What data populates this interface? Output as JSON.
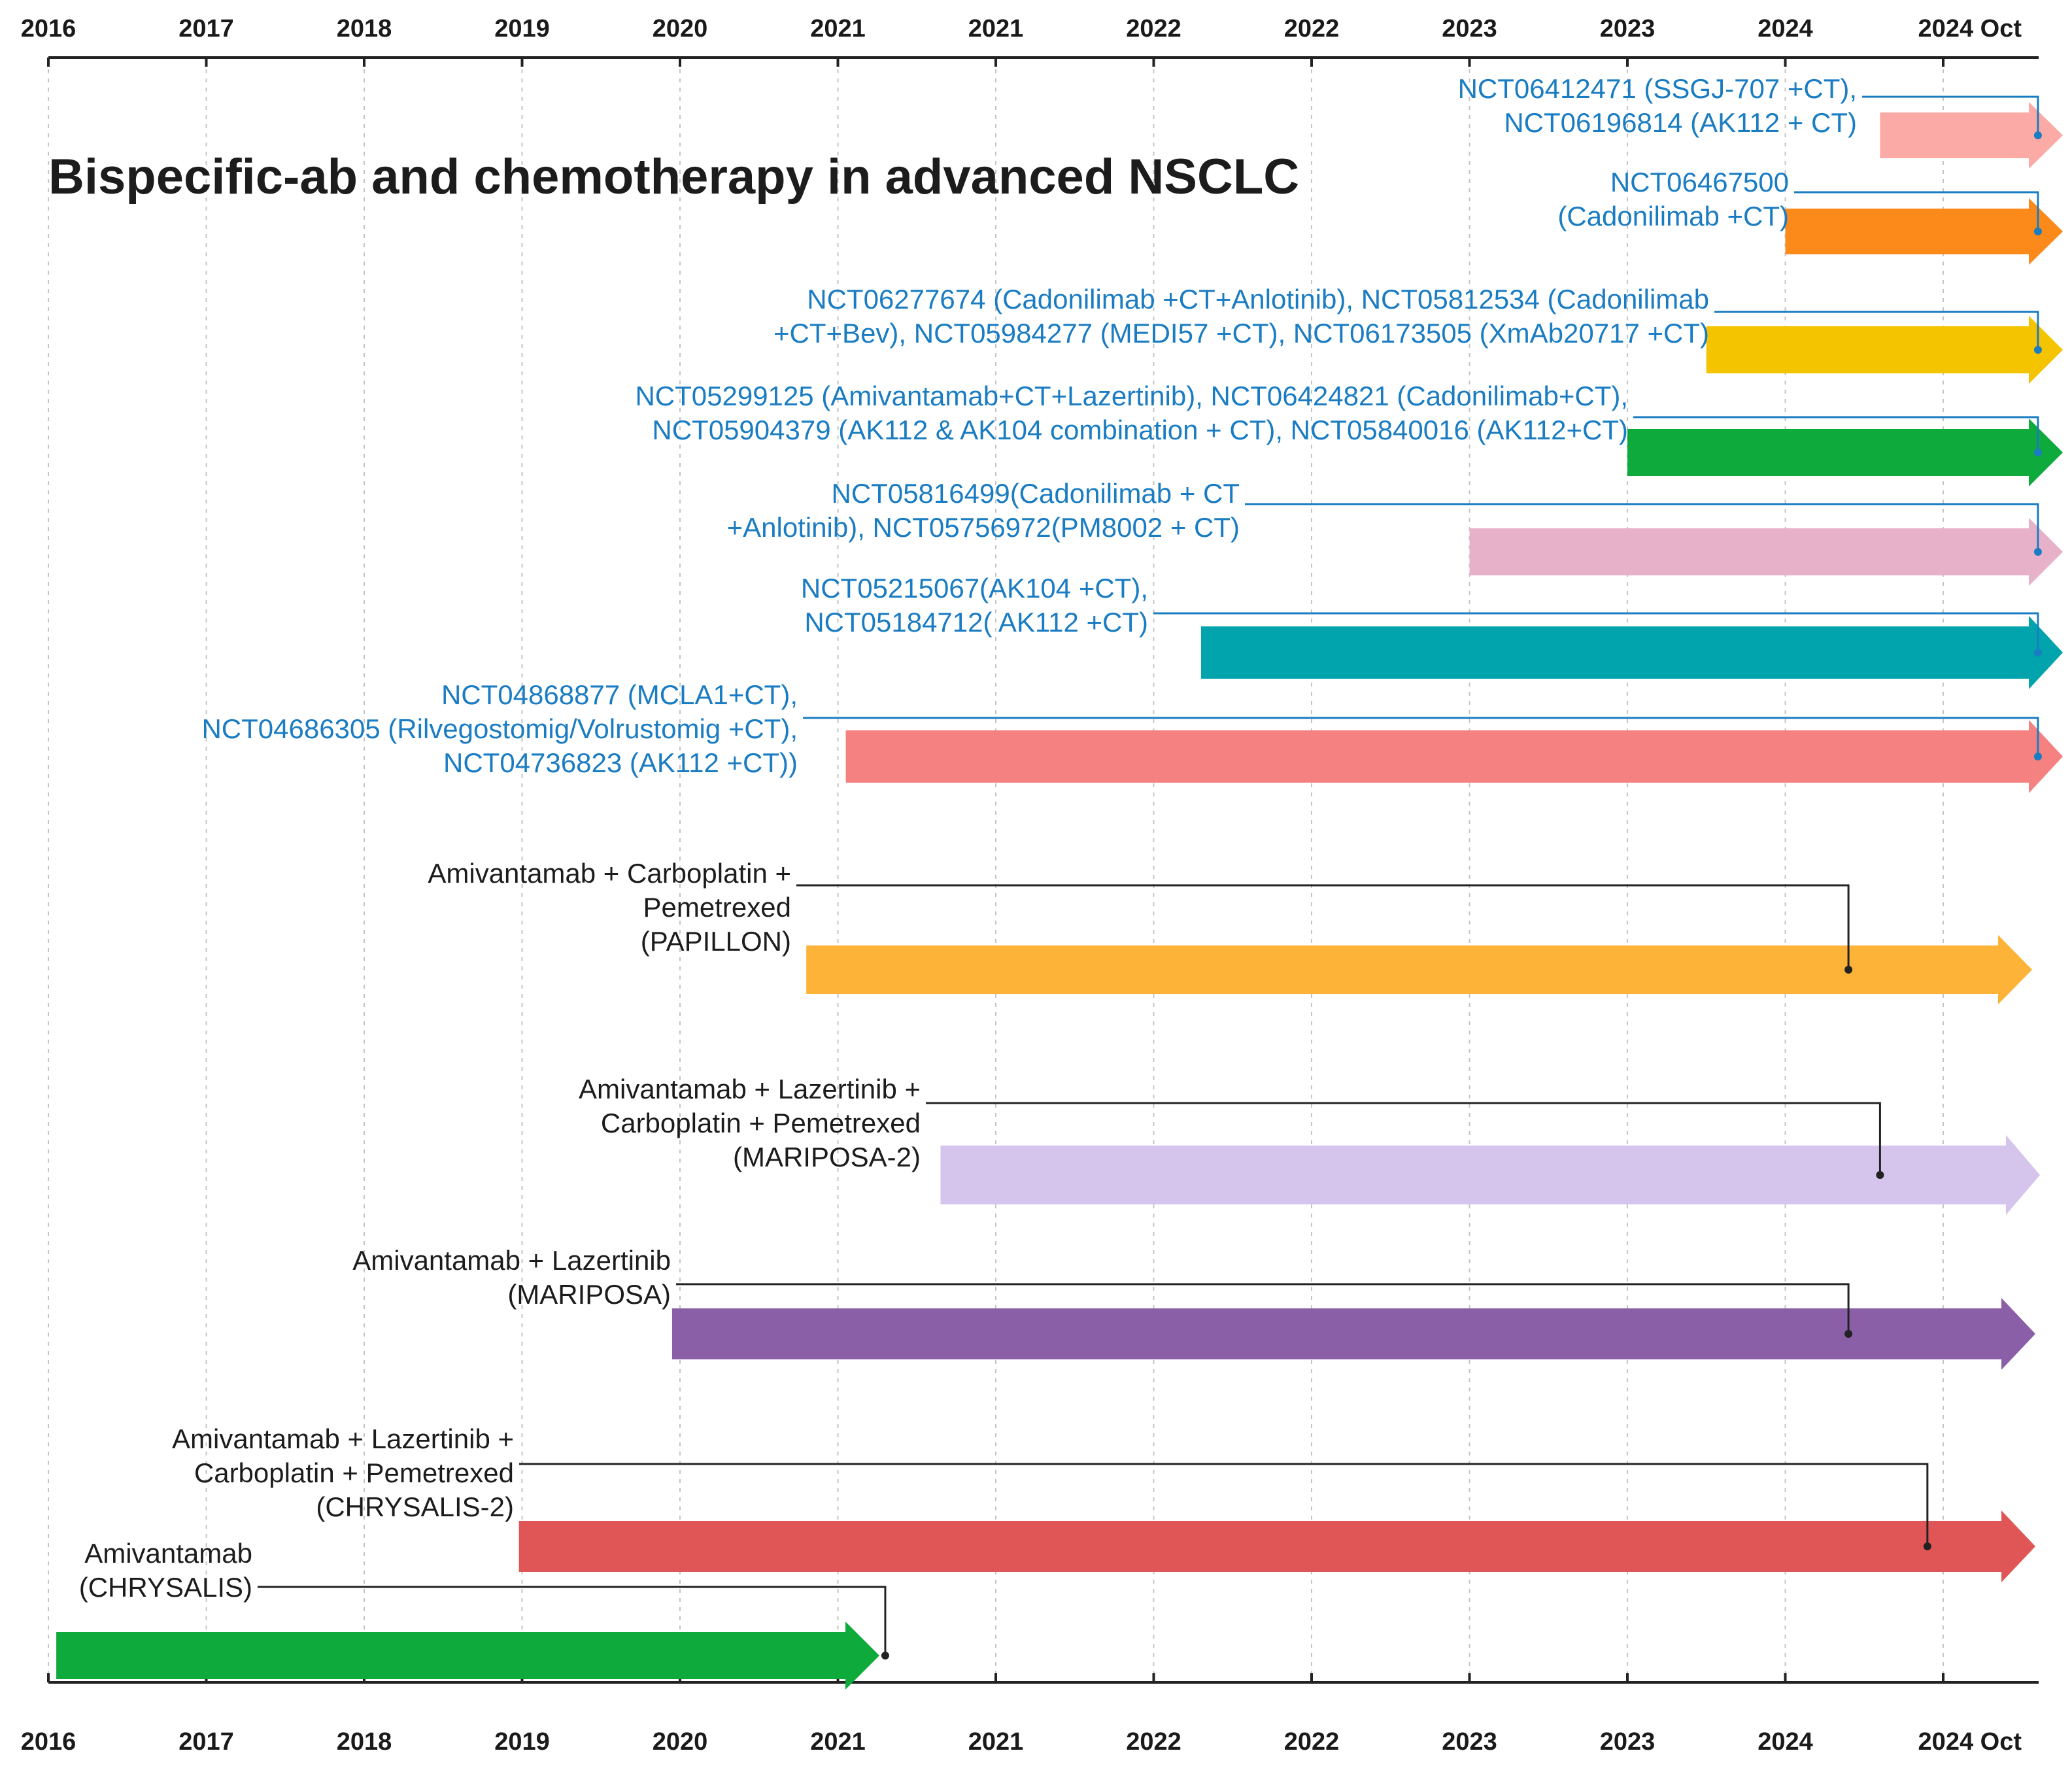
{
  "title": "Bispecific-ab and chemotherapy in advanced NSCLC",
  "axis": {
    "ticks": [
      "2016",
      "2017",
      "2018",
      "2019",
      "2020",
      "2021",
      "2021",
      "2022",
      "2022",
      "2023",
      "2023",
      "2024",
      "2024 Oct"
    ]
  },
  "trials": [
    {
      "id": "t1",
      "start": 11.6,
      "end_marker": 12.6,
      "color": "#fbaaa6",
      "label_color": "blue",
      "lines": [
        "NCT06412471 (SSGJ-707 +CT),",
        "NCT06196814 (AK112 + CT)"
      ]
    },
    {
      "id": "t2",
      "start": 11.0,
      "end_marker": 12.6,
      "color": "#fb8a1a",
      "label_color": "blue",
      "lines": [
        "NCT06467500",
        "(Cadonilimab +CT)"
      ]
    },
    {
      "id": "t3",
      "start": 10.5,
      "end_marker": 12.6,
      "color": "#f5c400",
      "label_color": "blue",
      "lines": [
        "NCT06277674 (Cadonilimab +CT+Anlotinib), NCT05812534 (Cadonilimab",
        "+CT+Bev), NCT05984277 (MEDI57 +CT), NCT06173505 (XmAb20717 +CT)"
      ]
    },
    {
      "id": "t4",
      "start": 10.0,
      "end_marker": 12.6,
      "color": "#0eaa3c",
      "label_color": "blue",
      "lines": [
        "NCT05299125 (Amivantamab+CT+Lazertinib), NCT06424821 (Cadonilimab+CT),",
        "NCT05904379 (AK112 & AK104 combination + CT), NCT05840016 (AK112+CT)"
      ]
    },
    {
      "id": "t5",
      "start": 9.0,
      "end_marker": 12.6,
      "color": "#e8b1ca",
      "label_color": "blue",
      "lines": [
        "NCT05816499(Cadonilimab + CT",
        "+Anlotinib), NCT05756972(PM8002 + CT)"
      ]
    },
    {
      "id": "t6",
      "start": 7.3,
      "end_marker": 12.6,
      "color": "#01a3ac",
      "label_color": "blue",
      "lines": [
        "NCT05215067(AK104 +CT),",
        "NCT05184712( AK112 +CT)"
      ]
    },
    {
      "id": "t7",
      "start": 5.05,
      "end_marker": 12.6,
      "color": "#f68181",
      "label_color": "blue",
      "lines": [
        "NCT04868877 (MCLA1+CT),",
        "NCT04686305 (Rilvegostomig/Volrustomig +CT),",
        "NCT04736823 (AK112 +CT))"
      ]
    },
    {
      "id": "t8",
      "start": 4.8,
      "end_marker": 11.4,
      "color": "#fdb337",
      "label_color": "black",
      "lines": [
        "Amivantamab + Carboplatin +",
        "Pemetrexed",
        "(PAPILLON)"
      ]
    },
    {
      "id": "t9",
      "start": 5.65,
      "end_marker": 11.6,
      "color": "#d5c4ec",
      "label_color": "black",
      "lines": [
        "Amivantamab + Lazertinib +",
        "Carboplatin + Pemetrexed",
        "(MARIPOSA-2)"
      ]
    },
    {
      "id": "t10",
      "start": 3.95,
      "end_marker": 11.4,
      "color": "#8b5ea8",
      "label_color": "black",
      "lines": [
        "Amivantamab + Lazertinib",
        "(MARIPOSA)"
      ]
    },
    {
      "id": "t11",
      "start": 2.98,
      "end_marker": 11.9,
      "color": "#e05657",
      "label_color": "black",
      "lines": [
        "Amivantamab + Lazertinib +",
        "Carboplatin + Pemetrexed",
        "(CHRYSALIS-2)"
      ]
    },
    {
      "id": "t12",
      "start": 0.05,
      "end_marker": 5.3,
      "color": "#0eaa3c",
      "label_color": "black",
      "lines": [
        "Amivantamab",
        "(CHRYSALIS)"
      ]
    }
  ]
}
